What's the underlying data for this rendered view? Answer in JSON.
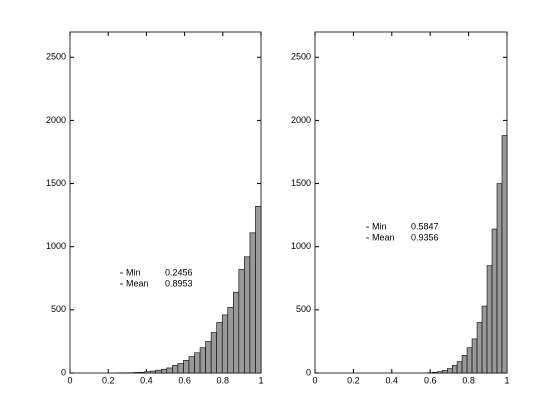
{
  "chart_data": [
    {
      "type": "histogram",
      "bins": [
        0.246,
        0.275,
        0.304,
        0.333,
        0.362,
        0.391,
        0.42,
        0.449,
        0.478,
        0.507,
        0.536,
        0.565,
        0.594,
        0.623,
        0.652,
        0.681,
        0.71,
        0.739,
        0.768,
        0.797,
        0.826,
        0.855,
        0.884,
        0.913,
        0.942,
        0.971,
        1.0
      ],
      "values": [
        1,
        1,
        2,
        4,
        6,
        10,
        15,
        22,
        30,
        40,
        60,
        75,
        100,
        130,
        160,
        200,
        250,
        320,
        400,
        460,
        520,
        640,
        820,
        920,
        1110,
        1320
      ],
      "color": "#999999",
      "xlim": [
        0,
        1
      ],
      "ylim": [
        0,
        2700
      ],
      "xticks": [
        0,
        0.2,
        0.4,
        0.6,
        0.8,
        1
      ],
      "yticks": [
        0,
        500,
        1000,
        1500,
        2000,
        2500
      ],
      "annotations": [
        {
          "label": "Min",
          "value": 0.2456
        },
        {
          "label": "Mean",
          "value": 0.8953
        }
      ]
    },
    {
      "type": "histogram",
      "bins": [
        0.585,
        0.611,
        0.637,
        0.663,
        0.689,
        0.715,
        0.74,
        0.766,
        0.792,
        0.818,
        0.844,
        0.87,
        0.896,
        0.922,
        0.948,
        0.974,
        1.0
      ],
      "values": [
        2,
        5,
        10,
        20,
        35,
        60,
        90,
        140,
        200,
        270,
        400,
        530,
        850,
        1140,
        1500,
        1880
      ],
      "color": "#999999",
      "xlim": [
        0,
        1
      ],
      "ylim": [
        0,
        2700
      ],
      "xticks": [
        0,
        0.2,
        0.4,
        0.6,
        0.8,
        1
      ],
      "yticks": [
        0,
        500,
        1000,
        1500,
        2000,
        2500
      ],
      "annotations": [
        {
          "label": "Min",
          "value": 0.5847
        },
        {
          "label": "Mean",
          "value": 0.9356
        }
      ]
    }
  ]
}
